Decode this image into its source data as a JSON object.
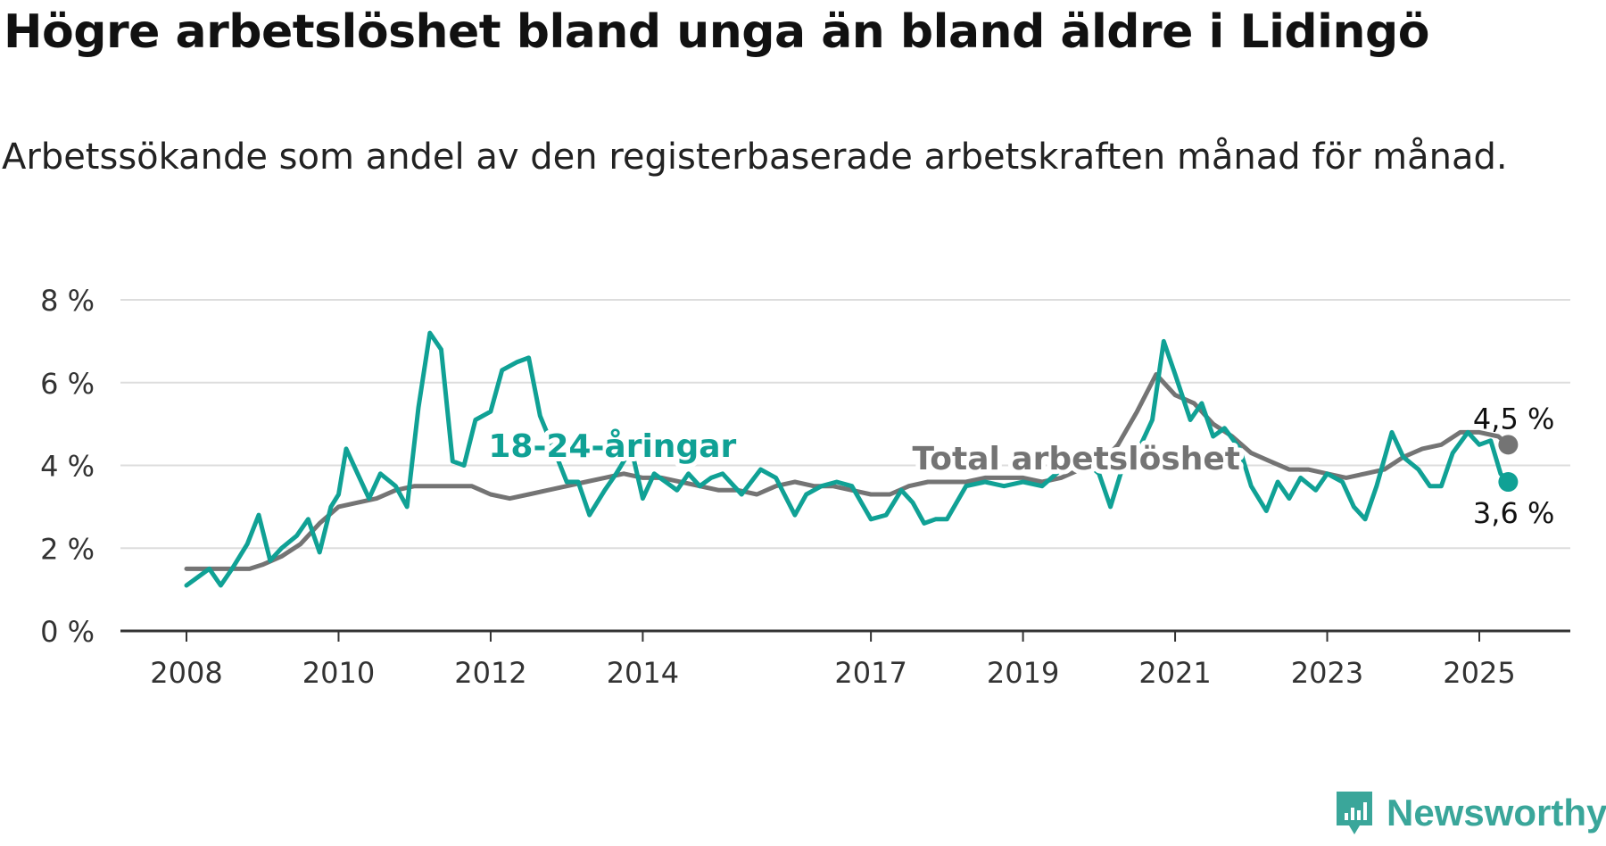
{
  "title": "Högre arbetslöshet bland unga än bland äldre i Lidingö",
  "subtitle": "Arbetssökande som andel av den registerbaserade arbetskraften månad för månad.",
  "brand": {
    "name": "Newsworthy",
    "icon": "newsworthy-logo-icon"
  },
  "colors": {
    "youth": "#10a195",
    "total": "#747474",
    "grid": "#dddddd",
    "axis": "#333333"
  },
  "chart_data": {
    "type": "line",
    "x_unit": "year",
    "ylim": [
      0,
      8
    ],
    "y_ticks": [
      0,
      2,
      4,
      6,
      8
    ],
    "y_tick_labels": [
      "0 %",
      "2 %",
      "4 %",
      "6 %",
      "8 %"
    ],
    "x_ticks": [
      2008,
      2010,
      2012,
      2014,
      2017,
      2019,
      2021,
      2023,
      2025
    ],
    "x_tick_labels": [
      "2008",
      "2010",
      "2012",
      "2014",
      "2017",
      "2019",
      "2021",
      "2023",
      "2025"
    ],
    "grid": "horizontal",
    "series": [
      {
        "name": "Total arbetslöshet",
        "color": "#747474",
        "end_label": "4,5 %",
        "points": [
          [
            2008.0,
            1.5
          ],
          [
            2008.33,
            1.5
          ],
          [
            2008.58,
            1.5
          ],
          [
            2008.83,
            1.5
          ],
          [
            2009.0,
            1.6
          ],
          [
            2009.25,
            1.8
          ],
          [
            2009.5,
            2.1
          ],
          [
            2009.75,
            2.6
          ],
          [
            2010.0,
            3.0
          ],
          [
            2010.25,
            3.1
          ],
          [
            2010.5,
            3.2
          ],
          [
            2010.75,
            3.4
          ],
          [
            2011.0,
            3.5
          ],
          [
            2011.25,
            3.5
          ],
          [
            2011.5,
            3.5
          ],
          [
            2011.75,
            3.5
          ],
          [
            2012.0,
            3.3
          ],
          [
            2012.25,
            3.2
          ],
          [
            2012.5,
            3.3
          ],
          [
            2012.75,
            3.4
          ],
          [
            2013.0,
            3.5
          ],
          [
            2013.25,
            3.6
          ],
          [
            2013.5,
            3.7
          ],
          [
            2013.75,
            3.8
          ],
          [
            2014.0,
            3.7
          ],
          [
            2014.25,
            3.7
          ],
          [
            2014.5,
            3.6
          ],
          [
            2014.75,
            3.5
          ],
          [
            2015.0,
            3.4
          ],
          [
            2015.25,
            3.4
          ],
          [
            2015.5,
            3.3
          ],
          [
            2015.75,
            3.5
          ],
          [
            2016.0,
            3.6
          ],
          [
            2016.25,
            3.5
          ],
          [
            2016.5,
            3.5
          ],
          [
            2016.75,
            3.4
          ],
          [
            2017.0,
            3.3
          ],
          [
            2017.25,
            3.3
          ],
          [
            2017.5,
            3.5
          ],
          [
            2017.75,
            3.6
          ],
          [
            2018.0,
            3.6
          ],
          [
            2018.25,
            3.6
          ],
          [
            2018.5,
            3.7
          ],
          [
            2018.75,
            3.7
          ],
          [
            2019.0,
            3.7
          ],
          [
            2019.25,
            3.6
          ],
          [
            2019.5,
            3.7
          ],
          [
            2019.75,
            3.9
          ],
          [
            2020.0,
            4.0
          ],
          [
            2020.25,
            4.5
          ],
          [
            2020.5,
            5.3
          ],
          [
            2020.75,
            6.2
          ],
          [
            2021.0,
            5.7
          ],
          [
            2021.25,
            5.5
          ],
          [
            2021.5,
            5.0
          ],
          [
            2021.75,
            4.7
          ],
          [
            2022.0,
            4.3
          ],
          [
            2022.25,
            4.1
          ],
          [
            2022.5,
            3.9
          ],
          [
            2022.75,
            3.9
          ],
          [
            2023.0,
            3.8
          ],
          [
            2023.25,
            3.7
          ],
          [
            2023.5,
            3.8
          ],
          [
            2023.75,
            3.9
          ],
          [
            2024.0,
            4.2
          ],
          [
            2024.25,
            4.4
          ],
          [
            2024.5,
            4.5
          ],
          [
            2024.75,
            4.8
          ],
          [
            2025.0,
            4.8
          ],
          [
            2025.25,
            4.7
          ],
          [
            2025.38,
            4.5
          ]
        ]
      },
      {
        "name": "18-24-åringar",
        "color": "#10a195",
        "end_label": "3,6 %",
        "points": [
          [
            2008.0,
            1.1
          ],
          [
            2008.15,
            1.3
          ],
          [
            2008.3,
            1.5
          ],
          [
            2008.45,
            1.1
          ],
          [
            2008.6,
            1.5
          ],
          [
            2008.8,
            2.1
          ],
          [
            2008.95,
            2.8
          ],
          [
            2009.1,
            1.7
          ],
          [
            2009.25,
            2.0
          ],
          [
            2009.45,
            2.3
          ],
          [
            2009.6,
            2.7
          ],
          [
            2009.75,
            1.9
          ],
          [
            2009.9,
            3.0
          ],
          [
            2010.0,
            3.3
          ],
          [
            2010.1,
            4.4
          ],
          [
            2010.25,
            3.8
          ],
          [
            2010.4,
            3.2
          ],
          [
            2010.55,
            3.8
          ],
          [
            2010.75,
            3.5
          ],
          [
            2010.9,
            3.0
          ],
          [
            2011.05,
            5.4
          ],
          [
            2011.2,
            7.2
          ],
          [
            2011.35,
            6.8
          ],
          [
            2011.5,
            4.1
          ],
          [
            2011.65,
            4.0
          ],
          [
            2011.8,
            5.1
          ],
          [
            2012.0,
            5.3
          ],
          [
            2012.15,
            6.3
          ],
          [
            2012.35,
            6.5
          ],
          [
            2012.5,
            6.6
          ],
          [
            2012.65,
            5.2
          ],
          [
            2012.85,
            4.3
          ],
          [
            2013.0,
            3.6
          ],
          [
            2013.15,
            3.6
          ],
          [
            2013.3,
            2.8
          ],
          [
            2013.5,
            3.4
          ],
          [
            2013.65,
            3.8
          ],
          [
            2013.85,
            4.4
          ],
          [
            2014.0,
            3.2
          ],
          [
            2014.15,
            3.8
          ],
          [
            2014.3,
            3.6
          ],
          [
            2014.45,
            3.4
          ],
          [
            2014.6,
            3.8
          ],
          [
            2014.75,
            3.5
          ],
          [
            2014.9,
            3.7
          ],
          [
            2015.05,
            3.8
          ],
          [
            2015.3,
            3.3
          ],
          [
            2015.55,
            3.9
          ],
          [
            2015.75,
            3.7
          ],
          [
            2016.0,
            2.8
          ],
          [
            2016.15,
            3.3
          ],
          [
            2016.35,
            3.5
          ],
          [
            2016.55,
            3.6
          ],
          [
            2016.75,
            3.5
          ],
          [
            2017.0,
            2.7
          ],
          [
            2017.2,
            2.8
          ],
          [
            2017.4,
            3.4
          ],
          [
            2017.55,
            3.1
          ],
          [
            2017.7,
            2.6
          ],
          [
            2017.85,
            2.7
          ],
          [
            2018.0,
            2.7
          ],
          [
            2018.25,
            3.5
          ],
          [
            2018.5,
            3.6
          ],
          [
            2018.75,
            3.5
          ],
          [
            2019.0,
            3.6
          ],
          [
            2019.25,
            3.5
          ],
          [
            2019.5,
            3.9
          ],
          [
            2019.75,
            4.2
          ],
          [
            2020.0,
            3.8
          ],
          [
            2020.15,
            3.0
          ],
          [
            2020.3,
            3.9
          ],
          [
            2020.5,
            4.3
          ],
          [
            2020.7,
            5.1
          ],
          [
            2020.85,
            7.0
          ],
          [
            2021.0,
            6.2
          ],
          [
            2021.2,
            5.1
          ],
          [
            2021.35,
            5.5
          ],
          [
            2021.5,
            4.7
          ],
          [
            2021.65,
            4.9
          ],
          [
            2021.85,
            4.4
          ],
          [
            2022.0,
            3.5
          ],
          [
            2022.2,
            2.9
          ],
          [
            2022.35,
            3.6
          ],
          [
            2022.5,
            3.2
          ],
          [
            2022.65,
            3.7
          ],
          [
            2022.85,
            3.4
          ],
          [
            2023.0,
            3.8
          ],
          [
            2023.2,
            3.6
          ],
          [
            2023.35,
            3.0
          ],
          [
            2023.5,
            2.7
          ],
          [
            2023.65,
            3.5
          ],
          [
            2023.85,
            4.8
          ],
          [
            2024.0,
            4.2
          ],
          [
            2024.2,
            3.9
          ],
          [
            2024.35,
            3.5
          ],
          [
            2024.5,
            3.5
          ],
          [
            2024.65,
            4.3
          ],
          [
            2024.85,
            4.8
          ],
          [
            2025.0,
            4.5
          ],
          [
            2025.15,
            4.6
          ],
          [
            2025.28,
            3.8
          ],
          [
            2025.38,
            3.6
          ]
        ]
      }
    ],
    "annotations": [
      {
        "text": "18-24-åringar",
        "series": "18-24-åringar",
        "x": 2013.6,
        "y": 4.2
      },
      {
        "text": "Total arbetslöshet",
        "series": "Total arbetslöshet",
        "x": 2019.7,
        "y": 3.9
      }
    ]
  }
}
